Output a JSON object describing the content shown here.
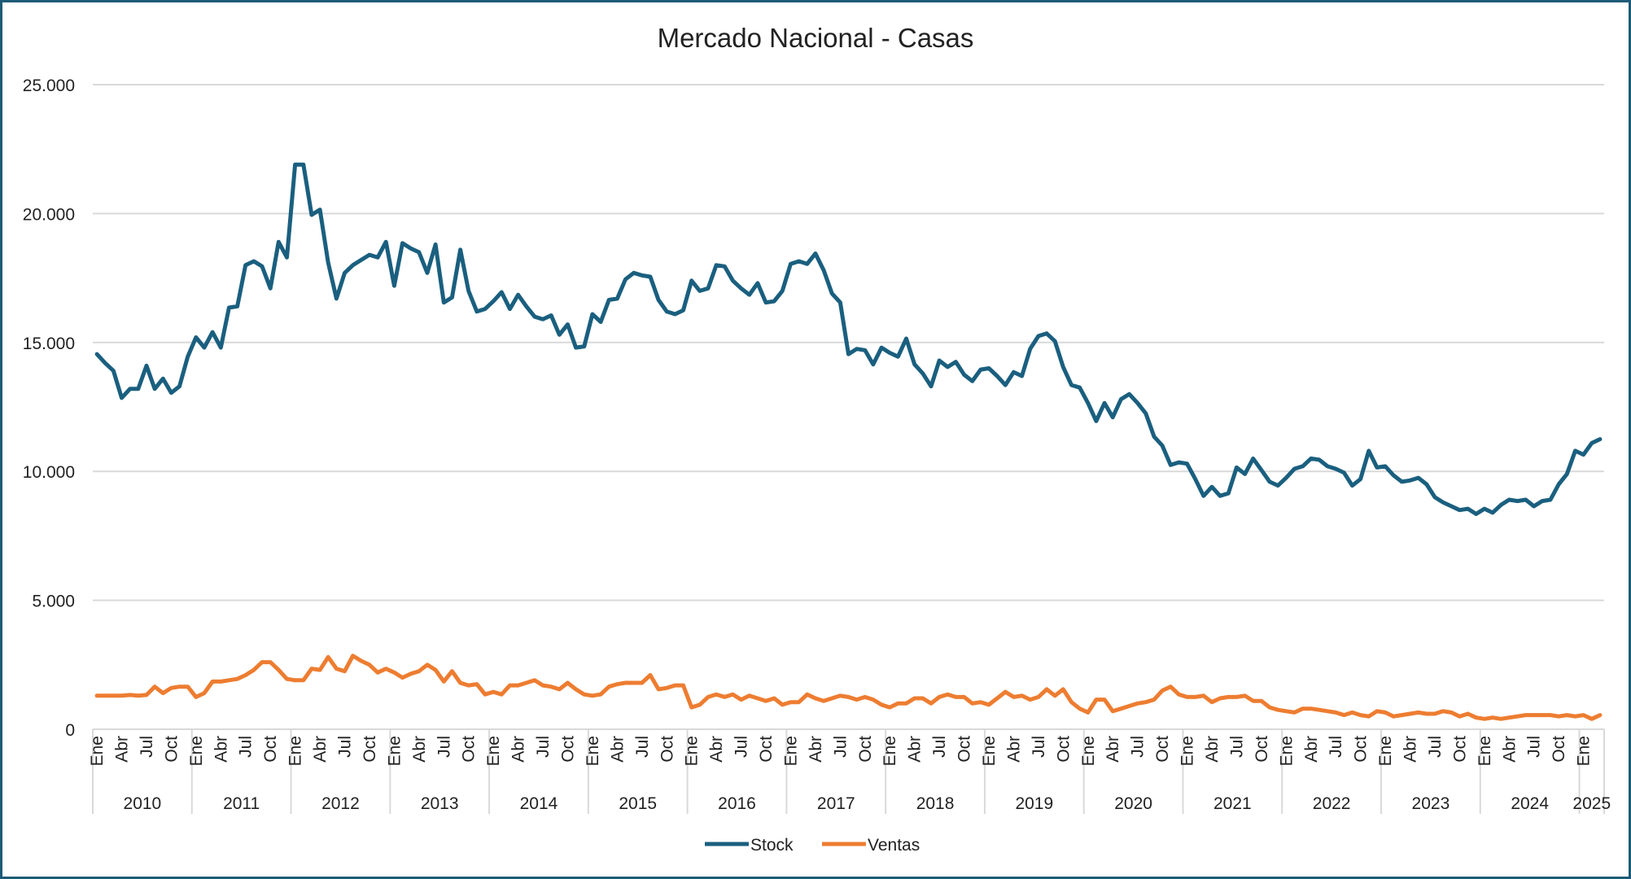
{
  "chart_data": {
    "type": "line",
    "title": "Mercado Nacional  - Casas",
    "xlabel": "",
    "ylabel": "",
    "ylim": [
      0,
      25000
    ],
    "yticks": [
      "0",
      "5.000",
      "10.000",
      "15.000",
      "20.000",
      "25.000"
    ],
    "ytick_values": [
      0,
      5000,
      10000,
      15000,
      20000,
      25000
    ],
    "grid": true,
    "legend_position": "bottom",
    "month_tick_labels": [
      "Ene",
      "Abr",
      "Jul",
      "Oct"
    ],
    "years": [
      "2010",
      "2011",
      "2012",
      "2013",
      "2014",
      "2015",
      "2016",
      "2017",
      "2018",
      "2019",
      "2020",
      "2021",
      "2022",
      "2023",
      "2024",
      "2025"
    ],
    "x_start": "Ene 2010",
    "x_end": "Mar 2025",
    "series": [
      {
        "name": "Stock",
        "color": "#1a5f7f",
        "values": [
          14550,
          14200,
          13900,
          12850,
          13200,
          13200,
          14100,
          13200,
          13600,
          13050,
          13300,
          14450,
          15200,
          14800,
          15400,
          14800,
          16350,
          16400,
          18000,
          18150,
          17950,
          17100,
          18900,
          18300,
          21900,
          21900,
          19950,
          20150,
          18100,
          16700,
          17700,
          18000,
          18200,
          18400,
          18300,
          18900,
          17200,
          18850,
          18650,
          18500,
          17700,
          18800,
          16550,
          16750,
          18600,
          17000,
          16200,
          16300,
          16600,
          16950,
          16300,
          16850,
          16400,
          16000,
          15900,
          16050,
          15300,
          15700,
          14800,
          14850,
          16100,
          15800,
          16650,
          16700,
          17450,
          17700,
          17600,
          17550,
          16650,
          16200,
          16100,
          16250,
          17400,
          17000,
          17100,
          18000,
          17950,
          17400,
          17100,
          16850,
          17300,
          16550,
          16600,
          17000,
          18050,
          18150,
          18050,
          18450,
          17800,
          16900,
          16550,
          14550,
          14750,
          14700,
          14150,
          14800,
          14600,
          14450,
          15150,
          14150,
          13800,
          13300,
          14300,
          14050,
          14250,
          13750,
          13500,
          13950,
          14000,
          13700,
          13350,
          13850,
          13700,
          14750,
          15250,
          15350,
          15050,
          14050,
          13350,
          13250,
          12650,
          11950,
          12650,
          12100,
          12800,
          13000,
          12650,
          12250,
          11350,
          11000,
          10250,
          10350,
          10300,
          9700,
          9050,
          9400,
          9050,
          9150,
          10150,
          9900,
          10500,
          10050,
          9600,
          9450,
          9750,
          10100,
          10200,
          10500,
          10450,
          10200,
          10100,
          9950,
          9450,
          9700,
          10800,
          10150,
          10200,
          9850,
          9600,
          9650,
          9750,
          9500,
          9000,
          8800,
          8650,
          8500,
          8550,
          8350,
          8550,
          8400,
          8700,
          8900,
          8850,
          8900,
          8650,
          8850,
          8900,
          9500,
          9900,
          10800,
          10650,
          11100,
          11250
        ]
      },
      {
        "name": "Ventas",
        "color": "#ed7d31",
        "values": [
          1300,
          1300,
          1300,
          1300,
          1330,
          1300,
          1330,
          1650,
          1400,
          1600,
          1650,
          1650,
          1250,
          1400,
          1850,
          1850,
          1900,
          1950,
          2100,
          2300,
          2600,
          2600,
          2300,
          1950,
          1900,
          1900,
          2350,
          2300,
          2800,
          2350,
          2250,
          2850,
          2650,
          2500,
          2200,
          2350,
          2200,
          2000,
          2150,
          2250,
          2500,
          2300,
          1850,
          2250,
          1800,
          1700,
          1750,
          1350,
          1450,
          1350,
          1700,
          1700,
          1800,
          1900,
          1700,
          1650,
          1550,
          1800,
          1550,
          1350,
          1300,
          1350,
          1650,
          1750,
          1800,
          1800,
          1800,
          2100,
          1550,
          1600,
          1700,
          1700,
          850,
          950,
          1250,
          1350,
          1250,
          1350,
          1150,
          1300,
          1200,
          1100,
          1200,
          950,
          1050,
          1050,
          1350,
          1200,
          1100,
          1200,
          1300,
          1250,
          1150,
          1250,
          1150,
          950,
          850,
          1000,
          1000,
          1200,
          1200,
          1000,
          1250,
          1350,
          1250,
          1250,
          1000,
          1050,
          950,
          1200,
          1450,
          1250,
          1300,
          1150,
          1250,
          1550,
          1300,
          1550,
          1050,
          800,
          650,
          1150,
          1150,
          700,
          800,
          900,
          1000,
          1050,
          1150,
          1500,
          1650,
          1350,
          1250,
          1250,
          1300,
          1050,
          1200,
          1250,
          1250,
          1300,
          1100,
          1100,
          850,
          750,
          700,
          650,
          800,
          800,
          750,
          700,
          650,
          550,
          650,
          550,
          500,
          700,
          650,
          500,
          550,
          600,
          650,
          600,
          600,
          700,
          650,
          500,
          600,
          450,
          400,
          450,
          400,
          450,
          500,
          550,
          550,
          550,
          550,
          500,
          550,
          500,
          550,
          400,
          550
        ]
      }
    ]
  }
}
